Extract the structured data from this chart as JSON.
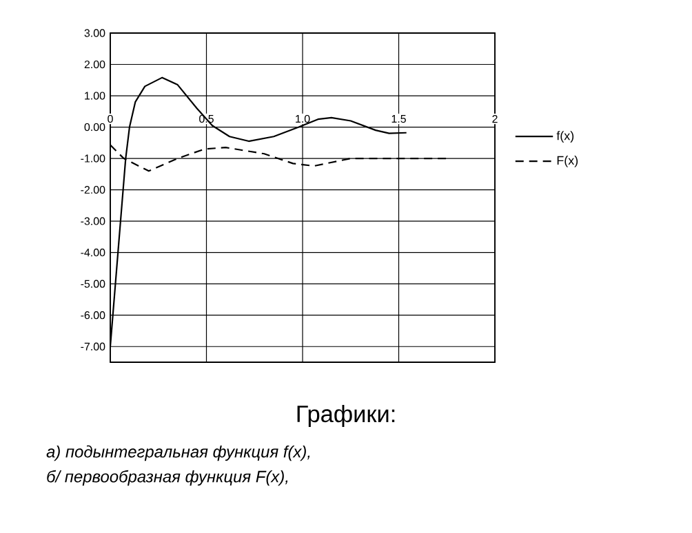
{
  "chart_data": {
    "type": "line",
    "title": "Графики:",
    "annotations": [
      "а) подынтегральная функция f(x),",
      "б/ первообразная функция F(x),"
    ],
    "xlim": [
      0,
      2
    ],
    "ylim": [
      -7.5,
      3
    ],
    "xticks": [
      0,
      0.5,
      {
        "value": 1,
        "label": "1.0"
      },
      1.5,
      2
    ],
    "yticks": [
      {
        "value": 3,
        "label": "3.00"
      },
      {
        "value": 2,
        "label": "2.00"
      },
      {
        "value": 1,
        "label": "1.00"
      },
      {
        "value": 0,
        "label": "0.00"
      },
      {
        "value": -1,
        "label": "-1.00"
      },
      {
        "value": -2,
        "label": "-2.00"
      },
      {
        "value": -3,
        "label": "-3.00"
      },
      {
        "value": -4,
        "label": "-4.00"
      },
      {
        "value": -5,
        "label": "-5.00"
      },
      {
        "value": -6,
        "label": "-6.00"
      },
      {
        "value": -7,
        "label": "-7.00"
      }
    ],
    "grid": true,
    "legend": "right",
    "series": [
      {
        "name": "f(x)",
        "color": "#000000",
        "line_style": "solid",
        "x": [
          0,
          0.04,
          0.08,
          0.1,
          0.13,
          0.18,
          0.27,
          0.35,
          0.45,
          0.53,
          0.62,
          0.72,
          0.85,
          0.98,
          1.08,
          1.15,
          1.25,
          1.38,
          1.45,
          1.54
        ],
        "values": [
          -7,
          -4,
          -1,
          0,
          0.8,
          1.3,
          1.58,
          1.35,
          0.6,
          0.05,
          -0.3,
          -0.45,
          -0.3,
          0,
          0.25,
          0.3,
          0.2,
          -0.1,
          -0.2,
          -0.18
        ]
      },
      {
        "name": "F(x)",
        "color": "#000000",
        "line_style": "dashed",
        "x": [
          0,
          0.07,
          0.2,
          0.35,
          0.49,
          0.6,
          0.8,
          0.95,
          1.06,
          1.25,
          1.5,
          1.77
        ],
        "values": [
          -0.57,
          -1,
          -1.4,
          -1.0,
          -0.7,
          -0.65,
          -0.85,
          -1.16,
          -1.24,
          -1.0,
          -1.0,
          -1.0
        ]
      }
    ]
  }
}
